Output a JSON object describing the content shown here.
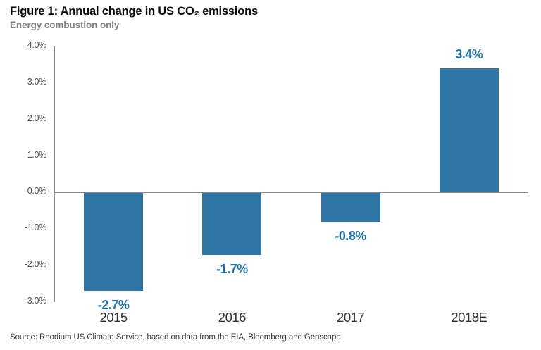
{
  "header": {
    "title": "Figure 1: Annual change in US CO₂ emissions",
    "subtitle": "Energy combustion only"
  },
  "footer": {
    "source": "Source: Rhodium US Climate Service, based on data from the EIA, Bloomberg and Genscape"
  },
  "colors": {
    "bar": "#2e74a4",
    "value_label": "#1f72ae",
    "axis": "#8a8a8a",
    "tick_label": "#4d4d4d",
    "category_label": "#303030",
    "subtitle": "#7f7f7f",
    "title": "#0a0a0a",
    "source": "#333333",
    "background": "#ffffff"
  },
  "chart_data": {
    "type": "bar",
    "title": "Figure 1: Annual change in US CO₂ emissions",
    "subtitle": "Energy combustion only",
    "categories": [
      "2015",
      "2016",
      "2017",
      "2018E"
    ],
    "values": [
      -2.7,
      -1.7,
      -0.8,
      3.4
    ],
    "value_labels": [
      "-2.7%",
      "-1.7%",
      "-0.8%",
      "3.4%"
    ],
    "xlabel": "",
    "ylabel": "",
    "ylim": [
      -3.0,
      4.0
    ],
    "ytick_values": [
      4.0,
      3.0,
      2.0,
      1.0,
      0.0,
      -1.0,
      -2.0,
      -3.0
    ],
    "ytick_labels": [
      "4.0%",
      "3.0%",
      "2.0%",
      "1.0%",
      "0.0%",
      "-1.0%",
      "-2.0%",
      "-3.0%"
    ],
    "grid": false,
    "legend": false,
    "bar_color": "#2e74a4",
    "zero_baseline": true
  }
}
